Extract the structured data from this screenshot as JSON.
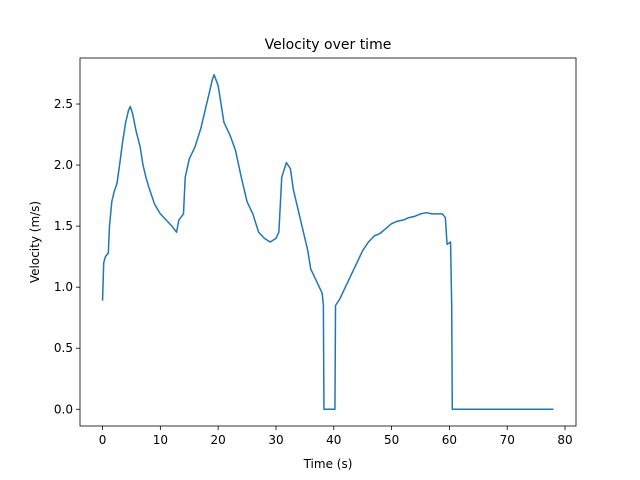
{
  "chart_data": {
    "type": "line",
    "title": "Velocity over time",
    "x_label": "Time (s)",
    "y_label": "Velocity (m/s)",
    "x": [
      0,
      0.2,
      0.5,
      1,
      1.2,
      1.6,
      2,
      2.5,
      3,
      3.5,
      4,
      4.5,
      4.8,
      5.2,
      5.8,
      6.5,
      7,
      7.5,
      8,
      8.5,
      9,
      10,
      11,
      12,
      12.8,
      13.2,
      14,
      14.3,
      15,
      16,
      17,
      18,
      19,
      19.3,
      20,
      20.5,
      21,
      22,
      23,
      24,
      25,
      26,
      27,
      28,
      29,
      30,
      30.5,
      31,
      31.8,
      32.5,
      33,
      34,
      35,
      35.5,
      36,
      37,
      37.5,
      38,
      38.2,
      38.3,
      40.2,
      40.3,
      41,
      42,
      43,
      44,
      45,
      46,
      47,
      48,
      49,
      50,
      51,
      52,
      53,
      54,
      55,
      56,
      57,
      58,
      58.8,
      59.3,
      59.6,
      60.2,
      60.4,
      60.5,
      78
    ],
    "series": [
      {
        "name": "Velocity",
        "color": "#1f77b4",
        "values": [
          0.89,
          1.2,
          1.25,
          1.28,
          1.5,
          1.7,
          1.78,
          1.85,
          2.02,
          2.2,
          2.35,
          2.45,
          2.48,
          2.42,
          2.28,
          2.15,
          2.0,
          1.9,
          1.82,
          1.75,
          1.68,
          1.6,
          1.55,
          1.5,
          1.45,
          1.55,
          1.6,
          1.9,
          2.05,
          2.15,
          2.3,
          2.5,
          2.7,
          2.74,
          2.65,
          2.5,
          2.35,
          2.25,
          2.12,
          1.9,
          1.7,
          1.6,
          1.45,
          1.4,
          1.37,
          1.4,
          1.45,
          1.9,
          2.02,
          1.97,
          1.8,
          1.6,
          1.4,
          1.3,
          1.15,
          1.05,
          1.0,
          0.95,
          0.85,
          0,
          0,
          0.85,
          0.9,
          1.0,
          1.1,
          1.2,
          1.3,
          1.37,
          1.42,
          1.44,
          1.48,
          1.52,
          1.54,
          1.55,
          1.57,
          1.58,
          1.6,
          1.61,
          1.6,
          1.6,
          1.6,
          1.57,
          1.35,
          1.37,
          0.85,
          0,
          0
        ]
      }
    ],
    "xlim": [
      -3.9,
      81.9
    ],
    "ylim": [
      -0.137,
      2.877
    ],
    "xticks": [
      0,
      10,
      20,
      30,
      40,
      50,
      60,
      70,
      80
    ],
    "yticks": [
      {
        "value": 0,
        "label": "0.0"
      },
      {
        "value": 0.5,
        "label": "0.5"
      },
      {
        "value": 1,
        "label": "1.0"
      },
      {
        "value": 1.5,
        "label": "1.5"
      },
      {
        "value": 2,
        "label": "2.0"
      },
      {
        "value": 2.5,
        "label": "2.5"
      }
    ],
    "grid": false
  }
}
